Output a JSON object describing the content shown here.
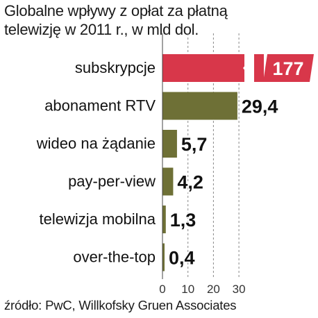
{
  "title_lines": [
    "Globalne wpływy z opłat za płatną",
    "telewizję w 2011 r., w mld dol."
  ],
  "source": "źródło: PwC, Willkofsky Gruen Associates",
  "colors": {
    "accent": "#d8374a",
    "bar": "#6e7036",
    "grid": "#888888"
  },
  "chart_data": {
    "type": "bar",
    "orientation": "horizontal",
    "title": "Globalne wpływy z opłat za płatną telewizję w 2011 r., w mld dol.",
    "unit": "mld dol.",
    "categories": [
      "subskrypcje",
      "abonament RTV",
      "wideo na żądanie",
      "pay-per-view",
      "telewizja mobilna",
      "over-the-top"
    ],
    "values": [
      177,
      29.4,
      5.7,
      4.2,
      1.3,
      0.4
    ],
    "value_labels": [
      "177",
      "29,4",
      "5,7",
      "4,2",
      "1,3",
      "0,4"
    ],
    "highlight": [
      true,
      false,
      false,
      false,
      false,
      false
    ],
    "axis_break_on": [
      "subskrypcje"
    ],
    "xlim": [
      0,
      30
    ],
    "xticks": [
      0,
      10,
      20,
      30
    ],
    "grid": "vertical dashed"
  }
}
